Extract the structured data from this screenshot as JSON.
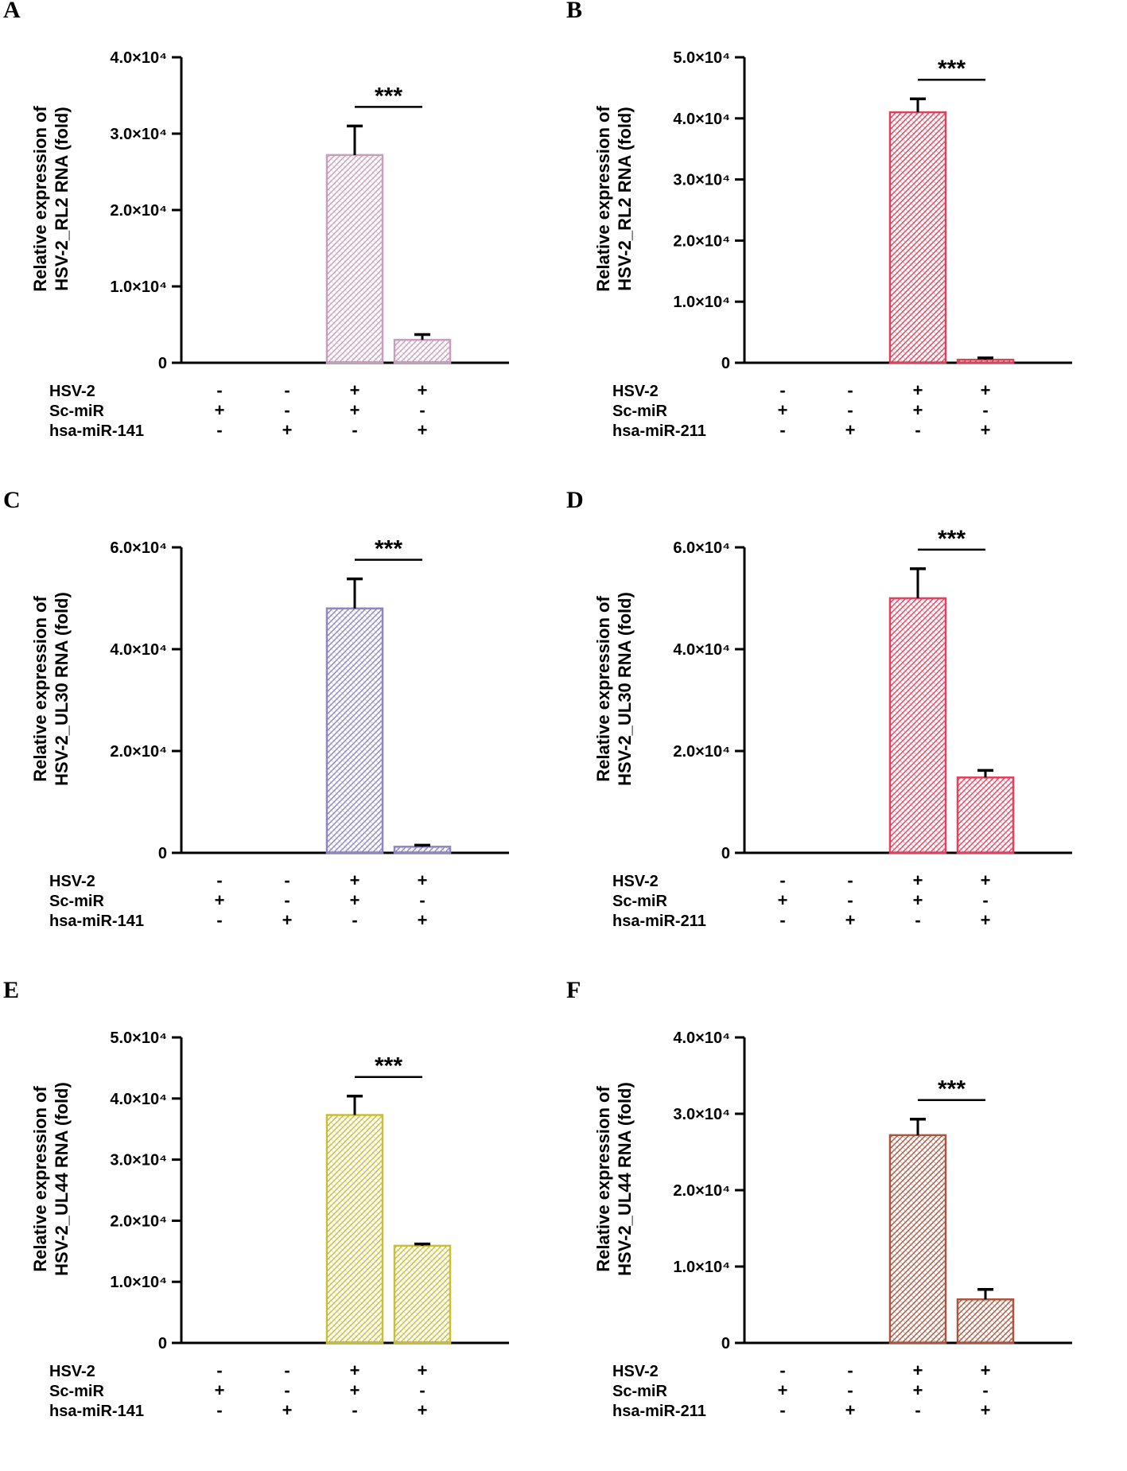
{
  "chart_data": [
    {
      "id": "A",
      "type": "bar",
      "panel_label": "A",
      "ylabel_line1": "Relative expression of",
      "ylabel_line2": "HSV-2_RL2 RNA (fold)",
      "ylim": [
        0,
        40000
      ],
      "yticks": [
        {
          "value": 0,
          "label": "0"
        },
        {
          "value": 10000,
          "label": "1.0×10⁴"
        },
        {
          "value": 20000,
          "label": "2.0×10⁴"
        },
        {
          "value": 30000,
          "label": "3.0×10⁴"
        },
        {
          "value": 40000,
          "label": "4.0×10⁴"
        }
      ],
      "values": [
        0,
        0,
        27200,
        3000
      ],
      "errors": [
        0,
        0,
        3800,
        700
      ],
      "bar_color": "#c79ebd",
      "conditions": [
        {
          "name": "HSV-2",
          "signs": [
            "-",
            "-",
            "+",
            "+"
          ]
        },
        {
          "name": "Sc-miR",
          "signs": [
            "+",
            "-",
            "+",
            "-"
          ]
        },
        {
          "name": "hsa-miR-141",
          "signs": [
            "-",
            "+",
            "-",
            "+"
          ]
        }
      ],
      "significance": "***"
    },
    {
      "id": "B",
      "type": "bar",
      "panel_label": "B",
      "ylabel_line1": "Relative expression of",
      "ylabel_line2": "HSV-2_RL2 RNA (fold)",
      "ylim": [
        0,
        50000
      ],
      "yticks": [
        {
          "value": 0,
          "label": "0"
        },
        {
          "value": 10000,
          "label": "1.0×10⁴"
        },
        {
          "value": 20000,
          "label": "2.0×10⁴"
        },
        {
          "value": 30000,
          "label": "3.0×10⁴"
        },
        {
          "value": 40000,
          "label": "4.0×10⁴"
        },
        {
          "value": 50000,
          "label": "5.0×10⁴"
        }
      ],
      "values": [
        0,
        0,
        41000,
        500
      ],
      "errors": [
        0,
        0,
        2200,
        300
      ],
      "bar_color": "#d9435c",
      "conditions": [
        {
          "name": "HSV-2",
          "signs": [
            "-",
            "-",
            "+",
            "+"
          ]
        },
        {
          "name": "Sc-miR",
          "signs": [
            "+",
            "-",
            "+",
            "-"
          ]
        },
        {
          "name": "hsa-miR-211",
          "signs": [
            "-",
            "+",
            "-",
            "+"
          ]
        }
      ],
      "significance": "***"
    },
    {
      "id": "C",
      "type": "bar",
      "panel_label": "C",
      "ylabel_line1": "Relative expression of",
      "ylabel_line2": "HSV-2_UL30 RNA (fold)",
      "ylim": [
        0,
        60000
      ],
      "yticks": [
        {
          "value": 0,
          "label": "0"
        },
        {
          "value": 20000,
          "label": "2.0×10⁴"
        },
        {
          "value": 40000,
          "label": "4.0×10⁴"
        },
        {
          "value": 60000,
          "label": "6.0×10⁴"
        }
      ],
      "values": [
        0,
        0,
        48000,
        1200
      ],
      "errors": [
        0,
        0,
        5800,
        300
      ],
      "bar_color": "#8f84c4",
      "conditions": [
        {
          "name": "HSV-2",
          "signs": [
            "-",
            "-",
            "+",
            "+"
          ]
        },
        {
          "name": "Sc-miR",
          "signs": [
            "+",
            "-",
            "+",
            "-"
          ]
        },
        {
          "name": "hsa-miR-141",
          "signs": [
            "-",
            "+",
            "-",
            "+"
          ]
        }
      ],
      "significance": "***"
    },
    {
      "id": "D",
      "type": "bar",
      "panel_label": "D",
      "ylabel_line1": "Relative expression of",
      "ylabel_line2": "HSV-2_UL30 RNA (fold)",
      "ylim": [
        0,
        60000
      ],
      "yticks": [
        {
          "value": 0,
          "label": "0"
        },
        {
          "value": 20000,
          "label": "2.0×10⁴"
        },
        {
          "value": 40000,
          "label": "4.0×10⁴"
        },
        {
          "value": 60000,
          "label": "6.0×10⁴"
        }
      ],
      "values": [
        0,
        0,
        50000,
        14800
      ],
      "errors": [
        0,
        0,
        5800,
        1400
      ],
      "bar_color": "#e5405e",
      "conditions": [
        {
          "name": "HSV-2",
          "signs": [
            "-",
            "-",
            "+",
            "+"
          ]
        },
        {
          "name": "Sc-miR",
          "signs": [
            "+",
            "-",
            "+",
            "-"
          ]
        },
        {
          "name": "hsa-miR-211",
          "signs": [
            "-",
            "+",
            "-",
            "+"
          ]
        }
      ],
      "significance": "***"
    },
    {
      "id": "E",
      "type": "bar",
      "panel_label": "E",
      "ylabel_line1": "Relative expression of",
      "ylabel_line2": "HSV-2_UL44 RNA (fold)",
      "ylim": [
        0,
        50000
      ],
      "yticks": [
        {
          "value": 0,
          "label": "0"
        },
        {
          "value": 10000,
          "label": "1.0×10⁴"
        },
        {
          "value": 20000,
          "label": "2.0×10⁴"
        },
        {
          "value": 30000,
          "label": "3.0×10⁴"
        },
        {
          "value": 40000,
          "label": "4.0×10⁴"
        },
        {
          "value": 50000,
          "label": "5.0×10⁴"
        }
      ],
      "values": [
        0,
        0,
        37300,
        15900
      ],
      "errors": [
        0,
        0,
        3100,
        300
      ],
      "bar_color": "#c9bd3a",
      "conditions": [
        {
          "name": "HSV-2",
          "signs": [
            "-",
            "-",
            "+",
            "+"
          ]
        },
        {
          "name": "Sc-miR",
          "signs": [
            "+",
            "-",
            "+",
            "-"
          ]
        },
        {
          "name": "hsa-miR-141",
          "signs": [
            "-",
            "+",
            "-",
            "+"
          ]
        }
      ],
      "significance": "***"
    },
    {
      "id": "F",
      "type": "bar",
      "panel_label": "F",
      "ylabel_line1": "Relative expression of",
      "ylabel_line2": "HSV-2_UL44 RNA (fold)",
      "ylim": [
        0,
        40000
      ],
      "yticks": [
        {
          "value": 0,
          "label": "0"
        },
        {
          "value": 10000,
          "label": "1.0×10⁴"
        },
        {
          "value": 20000,
          "label": "2.0×10⁴"
        },
        {
          "value": 30000,
          "label": "3.0×10⁴"
        },
        {
          "value": 40000,
          "label": "4.0×10⁴"
        }
      ],
      "values": [
        0,
        0,
        27200,
        5700
      ],
      "errors": [
        0,
        0,
        2100,
        1300
      ],
      "bar_color": "#a9553f",
      "conditions": [
        {
          "name": "HSV-2",
          "signs": [
            "-",
            "-",
            "+",
            "+"
          ]
        },
        {
          "name": "Sc-miR",
          "signs": [
            "+",
            "-",
            "+",
            "-"
          ]
        },
        {
          "name": "hsa-miR-211",
          "signs": [
            "-",
            "+",
            "-",
            "+"
          ]
        }
      ],
      "significance": "***"
    }
  ]
}
